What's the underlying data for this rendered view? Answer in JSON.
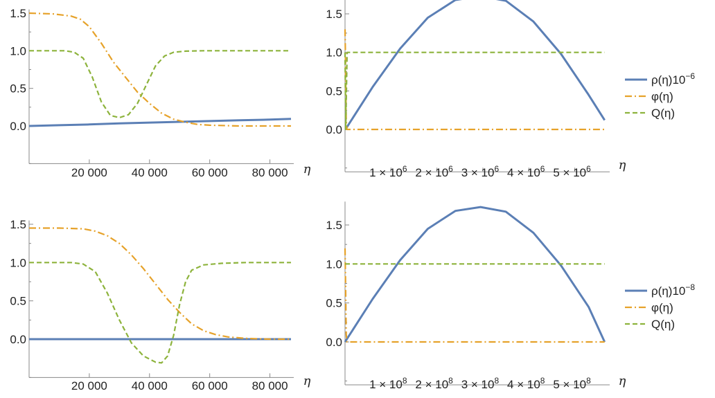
{
  "chart_data": [
    {
      "type": "line",
      "panel": "top-left",
      "xlabel": "η",
      "xlim": [
        0,
        87000
      ],
      "ylim": [
        -0.5,
        1.55
      ],
      "xticks": [
        20000,
        40000,
        60000,
        80000
      ],
      "xtick_labels": [
        "20 000",
        "40 000",
        "60 000",
        "80 000"
      ],
      "yticks": [
        0.0,
        0.5,
        1.0,
        1.5
      ],
      "ytick_labels": [
        "0.0",
        "0.5",
        "1.0",
        "1.5"
      ],
      "series": [
        {
          "key": "rho",
          "color": "#5b7fb5",
          "dash": "solid",
          "x": [
            0,
            10000,
            20000,
            30000,
            40000,
            50000,
            60000,
            70000,
            80000,
            87000
          ],
          "y": [
            0.0,
            0.01,
            0.02,
            0.035,
            0.045,
            0.055,
            0.065,
            0.075,
            0.085,
            0.095
          ]
        },
        {
          "key": "phi",
          "color": "#e6a22a",
          "dash": "dashdot",
          "x": [
            0,
            8000,
            14000,
            17000,
            20000,
            24000,
            28000,
            32000,
            36000,
            40000,
            44000,
            48000,
            52000,
            56000,
            60000,
            70000,
            87000
          ],
          "y": [
            1.5,
            1.49,
            1.46,
            1.42,
            1.32,
            1.1,
            0.85,
            0.65,
            0.45,
            0.3,
            0.17,
            0.09,
            0.05,
            0.02,
            0.01,
            0.0,
            0.0
          ]
        },
        {
          "key": "Q",
          "color": "#8db33c",
          "dash": "dashed",
          "x": [
            0,
            12000,
            15000,
            18000,
            21000,
            24000,
            27000,
            30000,
            33000,
            36000,
            39000,
            42000,
            45000,
            48000,
            52000,
            58000,
            70000,
            87000
          ],
          "y": [
            1.0,
            1.0,
            0.98,
            0.9,
            0.65,
            0.32,
            0.14,
            0.11,
            0.15,
            0.3,
            0.55,
            0.8,
            0.93,
            0.98,
            0.995,
            1.0,
            1.0,
            1.0
          ]
        }
      ]
    },
    {
      "type": "line",
      "panel": "top-right",
      "xlabel": "η",
      "xlim": [
        0,
        5700000
      ],
      "ylim": [
        -0.55,
        1.8
      ],
      "xticks": [
        1000000,
        2000000,
        3000000,
        4000000,
        5000000
      ],
      "xtick_bases": [
        "1 × 10",
        "2 × 10",
        "3 × 10",
        "4 × 10",
        "5 × 10"
      ],
      "xtick_exp": "6",
      "yticks": [
        0.0,
        0.5,
        1.0,
        1.5
      ],
      "ytick_labels": [
        "0.0",
        "0.5",
        "1.0",
        "1.5"
      ],
      "series": [
        {
          "key": "rho",
          "color": "#5b7fb5",
          "dash": "solid",
          "x": [
            30000,
            600000,
            1200000,
            1800000,
            2400000,
            2950000,
            3500000,
            4100000,
            4700000,
            5300000,
            5650000
          ],
          "y": [
            0.02,
            0.55,
            1.05,
            1.45,
            1.68,
            1.73,
            1.67,
            1.4,
            0.98,
            0.45,
            0.12
          ]
        },
        {
          "key": "phi",
          "color": "#e6a22a",
          "dash": "dashdot",
          "x": [
            0,
            10000,
            25000,
            40000,
            5650000
          ],
          "y": [
            1.3,
            0.9,
            0.1,
            0.0,
            0.0
          ]
        },
        {
          "key": "Q",
          "color": "#8db33c",
          "dash": "dashed",
          "x": [
            0,
            15000,
            30000,
            45000,
            5650000
          ],
          "y": [
            1.0,
            0.0,
            0.5,
            1.0,
            1.0
          ]
        }
      ],
      "legend": {
        "placement": "right",
        "items": [
          {
            "key": "rho",
            "label_main": "ρ(η)10",
            "label_sup": "−6"
          },
          {
            "key": "phi",
            "label_main": "φ(η)",
            "label_sup": ""
          },
          {
            "key": "Q",
            "label_main": "Q(η)",
            "label_sup": ""
          }
        ]
      }
    },
    {
      "type": "line",
      "panel": "bottom-left",
      "xlabel": "η",
      "xlim": [
        0,
        87000
      ],
      "ylim": [
        -0.5,
        1.55
      ],
      "xticks": [
        20000,
        40000,
        60000,
        80000
      ],
      "xtick_labels": [
        "20 000",
        "40 000",
        "60 000",
        "80 000"
      ],
      "yticks": [
        0.0,
        0.5,
        1.0,
        1.5
      ],
      "ytick_labels": [
        "0.0",
        "0.5",
        "1.0",
        "1.5"
      ],
      "series": [
        {
          "key": "rho",
          "color": "#5b7fb5",
          "dash": "solid",
          "x": [
            0,
            87000
          ],
          "y": [
            0.0,
            0.0
          ]
        },
        {
          "key": "phi",
          "color": "#e6a22a",
          "dash": "dashdot",
          "x": [
            0,
            10000,
            18000,
            22000,
            26000,
            30000,
            34000,
            38000,
            42000,
            46000,
            50000,
            54000,
            58000,
            62000,
            66000,
            72000,
            80000,
            87000
          ],
          "y": [
            1.45,
            1.45,
            1.44,
            1.41,
            1.35,
            1.25,
            1.1,
            0.92,
            0.72,
            0.52,
            0.35,
            0.2,
            0.11,
            0.06,
            0.03,
            0.01,
            0.0,
            0.0
          ]
        },
        {
          "key": "Q",
          "color": "#8db33c",
          "dash": "dashed",
          "x": [
            0,
            14000,
            18000,
            22000,
            26000,
            30000,
            34000,
            38000,
            42000,
            44000,
            46000,
            48000,
            50000,
            52000,
            54000,
            58000,
            64000,
            72000,
            87000
          ],
          "y": [
            1.0,
            1.0,
            0.98,
            0.88,
            0.6,
            0.25,
            -0.05,
            -0.22,
            -0.3,
            -0.31,
            -0.22,
            0.05,
            0.45,
            0.75,
            0.9,
            0.97,
            0.99,
            1.0,
            1.0
          ]
        }
      ]
    },
    {
      "type": "line",
      "panel": "bottom-right",
      "xlabel": "η",
      "xlim": [
        0,
        570000000
      ],
      "ylim": [
        -0.55,
        1.8
      ],
      "xticks": [
        100000000,
        200000000,
        300000000,
        400000000,
        500000000
      ],
      "xtick_bases": [
        "1 × 10",
        "2 × 10",
        "3 × 10",
        "4 × 10",
        "5 × 10"
      ],
      "xtick_exp": "8",
      "yticks": [
        0.0,
        0.5,
        1.0,
        1.5
      ],
      "ytick_labels": [
        "0.0",
        "0.5",
        "1.0",
        "1.5"
      ],
      "series": [
        {
          "key": "rho",
          "color": "#5b7fb5",
          "dash": "solid",
          "x": [
            0,
            60000000,
            120000000,
            180000000,
            240000000,
            295000000,
            350000000,
            410000000,
            470000000,
            530000000,
            565000000
          ],
          "y": [
            0.0,
            0.55,
            1.05,
            1.45,
            1.68,
            1.73,
            1.67,
            1.4,
            0.98,
            0.45,
            0.0
          ]
        },
        {
          "key": "phi",
          "color": "#e6a22a",
          "dash": "dashdot",
          "x": [
            0,
            1000000,
            2500000,
            4000000,
            565000000
          ],
          "y": [
            1.2,
            0.8,
            0.1,
            0.0,
            0.0
          ]
        },
        {
          "key": "Q",
          "color": "#8db33c",
          "dash": "dashed",
          "x": [
            0,
            565000000
          ],
          "y": [
            1.0,
            1.0
          ]
        }
      ],
      "legend": {
        "placement": "right",
        "items": [
          {
            "key": "rho",
            "label_main": "ρ(η)10",
            "label_sup": "−8"
          },
          {
            "key": "phi",
            "label_main": "φ(η)",
            "label_sup": ""
          },
          {
            "key": "Q",
            "label_main": "Q(η)",
            "label_sup": ""
          }
        ]
      }
    }
  ]
}
